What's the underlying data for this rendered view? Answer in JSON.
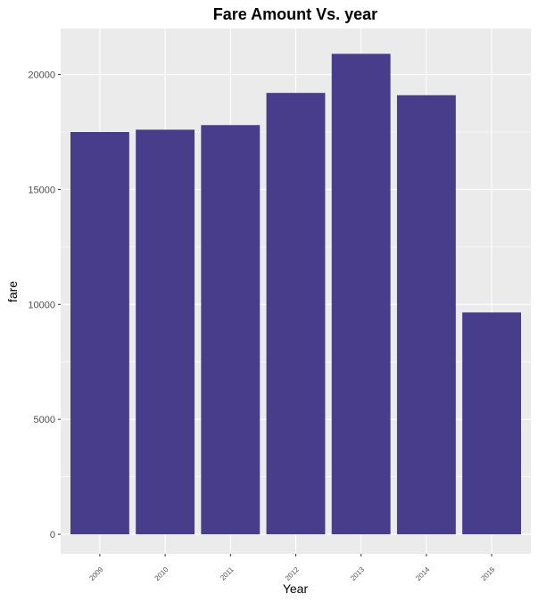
{
  "chart_data": {
    "type": "bar",
    "title": "Fare Amount Vs. year",
    "xlabel": "Year",
    "ylabel": "fare",
    "categories": [
      "2009",
      "2010",
      "2011",
      "2012",
      "2013",
      "2014",
      "2015"
    ],
    "values": [
      17500,
      17600,
      17800,
      19200,
      20900,
      19100,
      9650
    ],
    "ylim": [
      -850,
      22000
    ],
    "yticks": [
      0,
      5000,
      10000,
      15000,
      20000
    ],
    "grid": true,
    "legend": "none",
    "colors": {
      "bar": "#483D8B",
      "panel": "#EBEBEB",
      "grid_major": "#FFFFFF",
      "tick": "#333333"
    }
  }
}
